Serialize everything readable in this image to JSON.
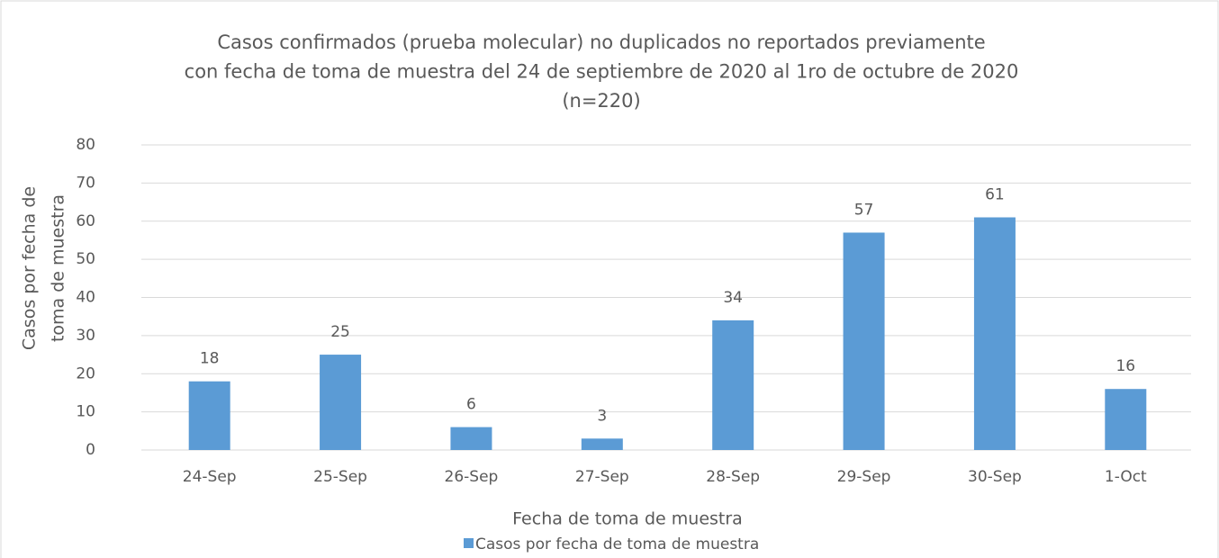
{
  "chart_data": {
    "type": "bar",
    "title": [
      "Casos confirmados (prueba molecular) no duplicados no reportados previamente",
      "con fecha de toma de muestra del 24 de septiembre de 2020 al 1ro de octubre de 2020",
      "(n=220)"
    ],
    "x_label": "Fecha de toma de muestra",
    "y_label": [
      "Casos por fecha de",
      "toma de muestra"
    ],
    "categories": [
      "24-Sep",
      "25-Sep",
      "26-Sep",
      "27-Sep",
      "28-Sep",
      "29-Sep",
      "30-Sep",
      "1-Oct"
    ],
    "series": [
      {
        "name": "Casos por fecha de toma de muestra",
        "color": "#5b9bd5",
        "values": [
          18,
          25,
          6,
          3,
          34,
          57,
          61,
          16
        ]
      }
    ],
    "ylim": [
      0,
      80
    ],
    "yticks": [
      0,
      10,
      20,
      30,
      40,
      50,
      60,
      70,
      80
    ],
    "grid": true,
    "legend": "bottom",
    "data_labels": true
  }
}
